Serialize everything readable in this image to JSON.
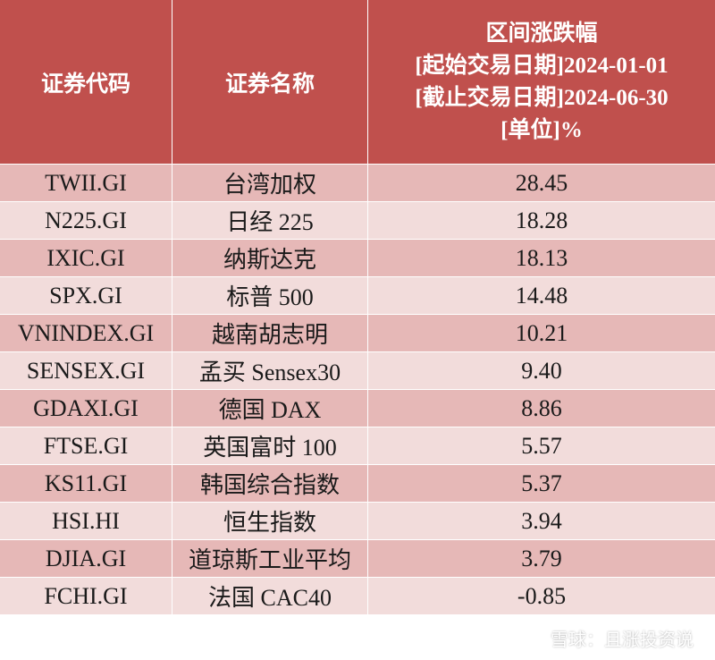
{
  "header": {
    "code": "证券代码",
    "name": "证券名称",
    "metric_lines": [
      "区间涨跌幅",
      "[起始交易日期]2024-01-01",
      "[截止交易日期]2024-06-30",
      "[单位]%"
    ]
  },
  "rows": [
    {
      "code": "TWII.GI",
      "name": "台湾加权",
      "value": "28.45"
    },
    {
      "code": "N225.GI",
      "name": "日经 225",
      "value": "18.28"
    },
    {
      "code": "IXIC.GI",
      "name": "纳斯达克",
      "value": "18.13"
    },
    {
      "code": "SPX.GI",
      "name": "标普 500",
      "value": "14.48"
    },
    {
      "code": "VNINDEX.GI",
      "name": "越南胡志明",
      "value": "10.21"
    },
    {
      "code": "SENSEX.GI",
      "name": "孟买 Sensex30",
      "value": "9.40"
    },
    {
      "code": "GDAXI.GI",
      "name": "德国 DAX",
      "value": "8.86"
    },
    {
      "code": "FTSE.GI",
      "name": "英国富时 100",
      "value": "5.57"
    },
    {
      "code": "KS11.GI",
      "name": "韩国综合指数",
      "value": "5.37"
    },
    {
      "code": "HSI.HI",
      "name": "恒生指数",
      "value": "3.94"
    },
    {
      "code": "DJIA.GI",
      "name": "道琼斯工业平均",
      "value": "3.79"
    },
    {
      "code": "FCHI.GI",
      "name": "法国 CAC40",
      "value": "-0.85"
    }
  ],
  "watermark": {
    "text": "雪球：且涨投资说",
    "logo_icon": "snowball-logo-icon"
  },
  "colors": {
    "header_bg": "#c0504d",
    "row_odd": "#e6b8b7",
    "row_even": "#f2dcdb"
  }
}
